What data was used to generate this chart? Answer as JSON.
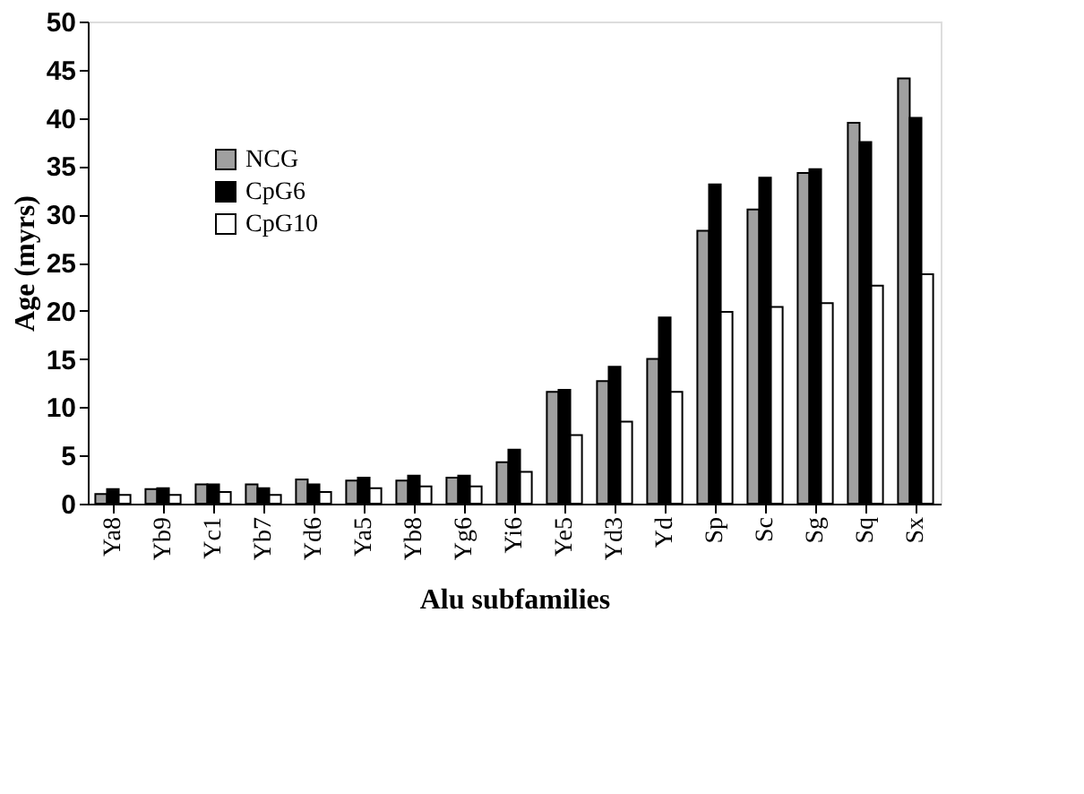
{
  "chart_data": {
    "type": "bar",
    "xlabel": "Alu subfamilies",
    "ylabel": "Age (myrs)",
    "categories": [
      "Ya8",
      "Yb9",
      "Yc1",
      "Yb7",
      "Yd6",
      "Ya5",
      "Yb8",
      "Yg6",
      "Yi6",
      "Ye5",
      "Yd3",
      "Yd",
      "Sp",
      "Sc",
      "Sg",
      "Sq",
      "Sx"
    ],
    "series": [
      {
        "name": "NCG",
        "color": "#a0a0a0",
        "values": [
          1.0,
          1.5,
          2.0,
          2.0,
          2.5,
          2.4,
          2.4,
          2.7,
          4.3,
          11.6,
          12.7,
          15.0,
          28.3,
          30.5,
          34.3,
          39.5,
          44.1
        ]
      },
      {
        "name": "CpG6",
        "color": "#000000",
        "values": [
          1.5,
          1.6,
          2.0,
          1.6,
          2.0,
          2.7,
          2.9,
          2.9,
          5.6,
          11.8,
          14.2,
          19.3,
          33.1,
          33.8,
          34.7,
          37.5,
          40.0
        ]
      },
      {
        "name": "CpG10",
        "color": "#ffffff",
        "values": [
          0.9,
          0.9,
          1.2,
          0.9,
          1.2,
          1.6,
          1.8,
          1.8,
          3.3,
          7.1,
          8.5,
          11.6,
          19.9,
          20.4,
          20.8,
          22.6,
          23.8
        ]
      }
    ],
    "ylim": [
      0,
      50
    ],
    "yticks": [
      0,
      5,
      10,
      15,
      20,
      25,
      30,
      35,
      40,
      45,
      50
    ],
    "grid": false,
    "legend": "top left"
  }
}
